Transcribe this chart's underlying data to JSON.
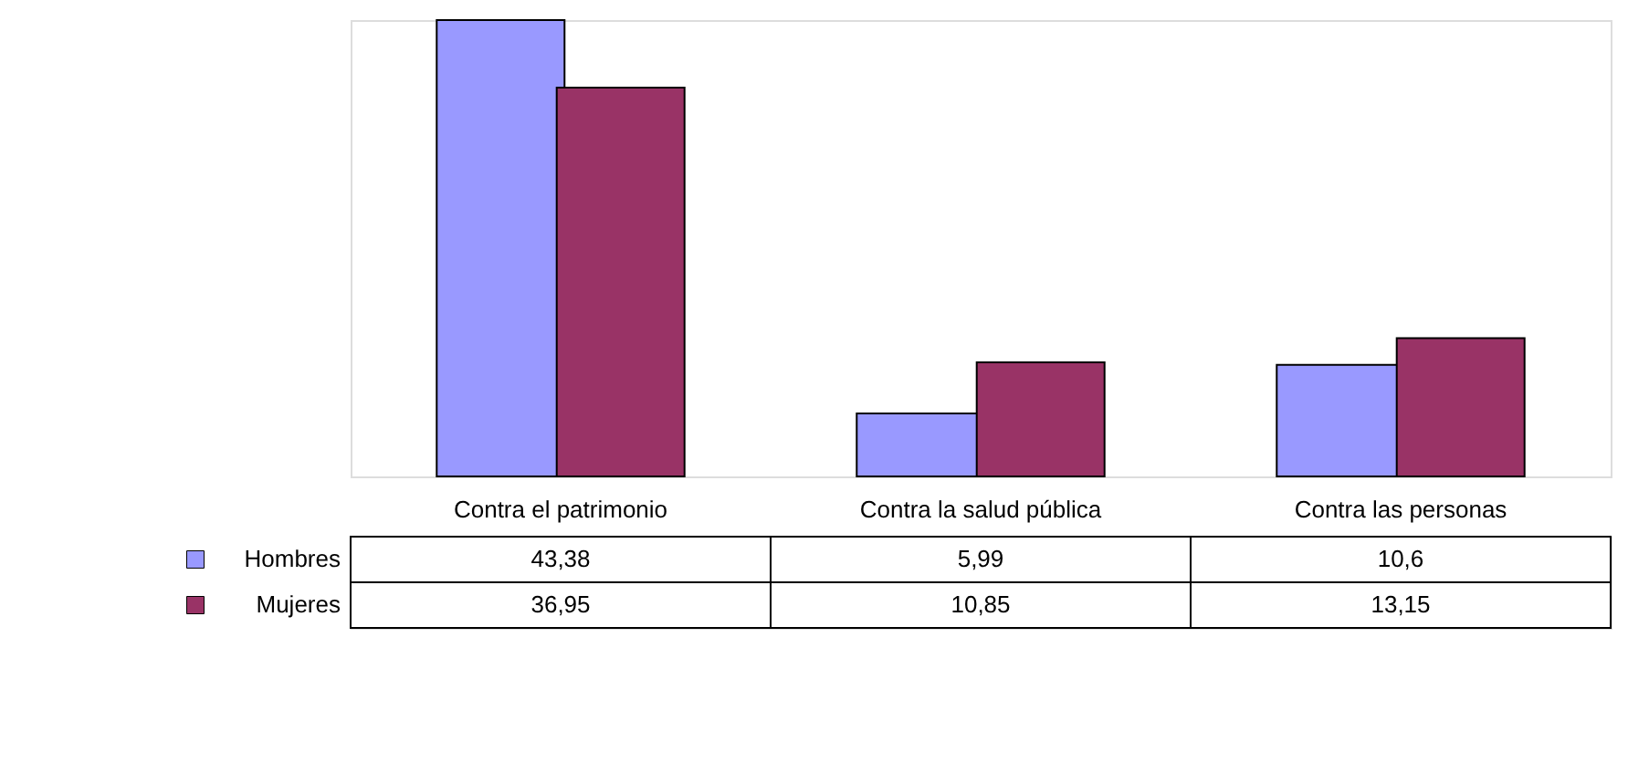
{
  "chart_data": {
    "type": "bar",
    "categories": [
      "Contra el patrimonio",
      "Contra la salud pública",
      "Contra las personas"
    ],
    "series": [
      {
        "name": "Hombres",
        "color": "#9999ff",
        "values": [
          43.38,
          5.99,
          10.6
        ],
        "value_labels": [
          "43,38",
          "5,99",
          "10,6"
        ]
      },
      {
        "name": "Mujeres",
        "color": "#993366",
        "values": [
          36.95,
          10.85,
          13.15
        ],
        "value_labels": [
          "36,95",
          "10,85",
          "13,15"
        ]
      }
    ],
    "legend": "bottom left",
    "grid": false
  }
}
